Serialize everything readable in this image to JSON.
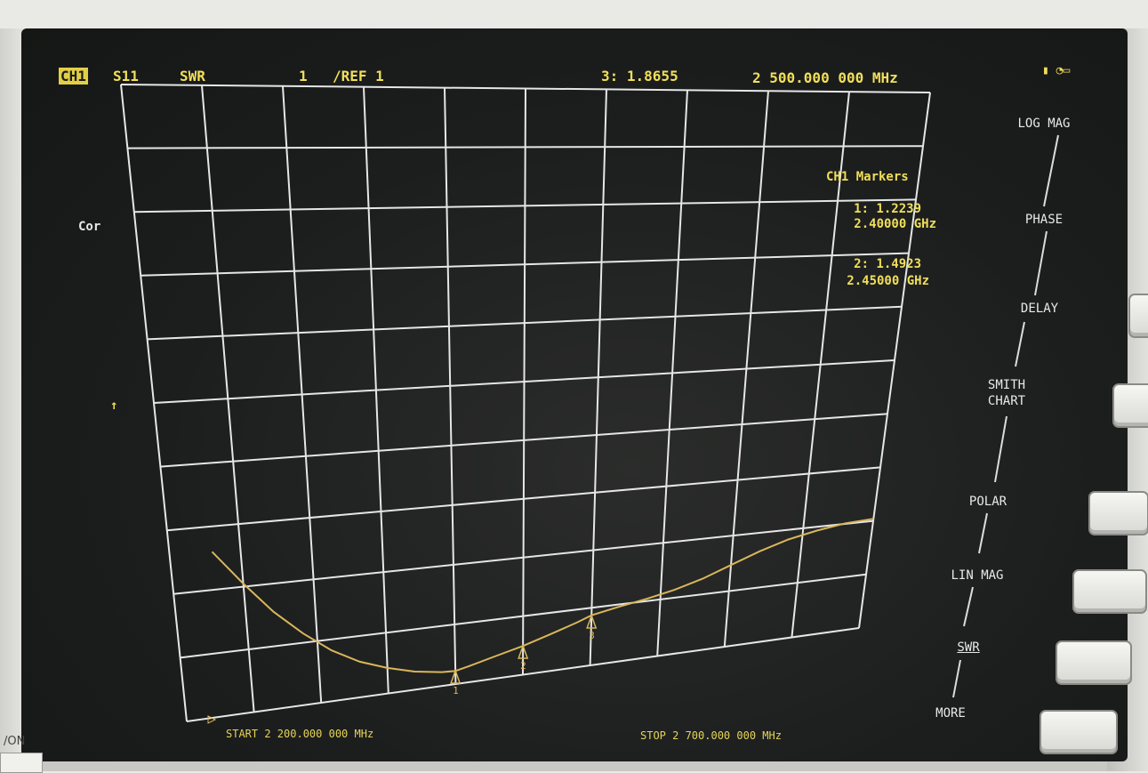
{
  "header": {
    "channel": "CH1",
    "parameter": "S11",
    "format": "SWR",
    "scale": "1",
    "ref": "/REF 1",
    "active_marker_readout": "3: 1.8655",
    "active_marker_freq": "2 500.000 000 MHz"
  },
  "left_labels": {
    "correction": "Cor",
    "ref_arrow": "↑"
  },
  "markers_panel": {
    "title": "CH1 Markers",
    "m1_value": "1: 1.2239",
    "m1_freq": "2.40000 GHz",
    "m2_value": "2: 1.4923",
    "m2_freq": "2.45000 GHz"
  },
  "footer": {
    "start": "START 2 200.000 000 MHz",
    "stop": "STOP 2 700.000 000 MHz"
  },
  "softkeys": [
    {
      "label": "LOG MAG",
      "selected": false
    },
    {
      "label": "PHASE",
      "selected": false
    },
    {
      "label": "DELAY",
      "selected": false
    },
    {
      "label": "SMITH\nCHART",
      "selected": false
    },
    {
      "label": "POLAR",
      "selected": false
    },
    {
      "label": "LIN MAG",
      "selected": false
    },
    {
      "label": "SWR",
      "selected": true
    },
    {
      "label": "MORE",
      "selected": false
    }
  ],
  "hardware": {
    "power_label": "/ON"
  },
  "colors": {
    "trace": "#d9b65a",
    "text": "#f1df5a",
    "grid": "#e6e6e6",
    "screen": "#1c1e1e"
  },
  "chart_data": {
    "type": "line",
    "title": "",
    "xlabel": "",
    "ylabel": "",
    "x_unit": "MHz",
    "xlim": [
      2200,
      2700
    ],
    "ylim": [
      1,
      11
    ],
    "grid": true,
    "series": [
      {
        "x": [
          2230,
          2250,
          2270,
          2290,
          2310,
          2330,
          2350,
          2370,
          2390,
          2400,
          2410,
          2430,
          2450,
          2470,
          2490,
          2500,
          2520,
          2540,
          2560,
          2580,
          2600,
          2620,
          2640,
          2660,
          2680,
          2700
        ],
        "values": [
          3.6,
          3.05,
          2.55,
          2.15,
          1.82,
          1.58,
          1.42,
          1.3,
          1.23,
          1.22,
          1.27,
          1.38,
          1.49,
          1.63,
          1.78,
          1.87,
          1.96,
          2.04,
          2.14,
          2.28,
          2.47,
          2.66,
          2.82,
          2.93,
          3.01,
          3.04
        ]
      }
    ],
    "markers": [
      {
        "label": "1",
        "x": 2400,
        "y": 1.2239
      },
      {
        "label": "2",
        "x": 2450,
        "y": 1.4923
      },
      {
        "label": "3",
        "x": 2500,
        "y": 1.8655
      }
    ]
  }
}
